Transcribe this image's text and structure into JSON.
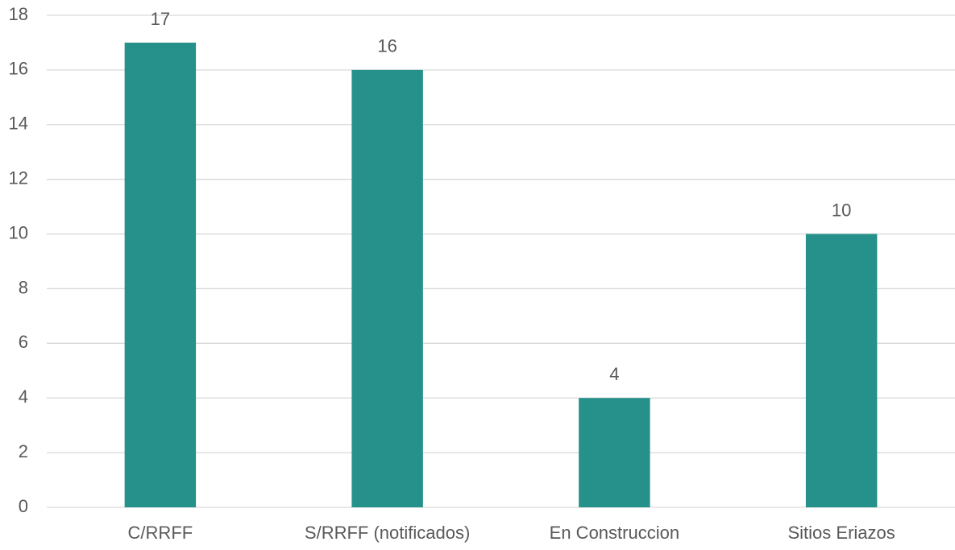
{
  "chart_data": {
    "type": "bar",
    "categories": [
      "C/RRFF",
      "S/RRFF (notificados)",
      "En Construccion",
      "Sitios Eriazos"
    ],
    "values": [
      17,
      16,
      4,
      10
    ],
    "color": "#25918a",
    "ylim": [
      0,
      18
    ],
    "yticks": [
      0,
      2,
      4,
      6,
      8,
      10,
      12,
      14,
      16,
      18
    ],
    "grid": true,
    "data_labels": true
  }
}
